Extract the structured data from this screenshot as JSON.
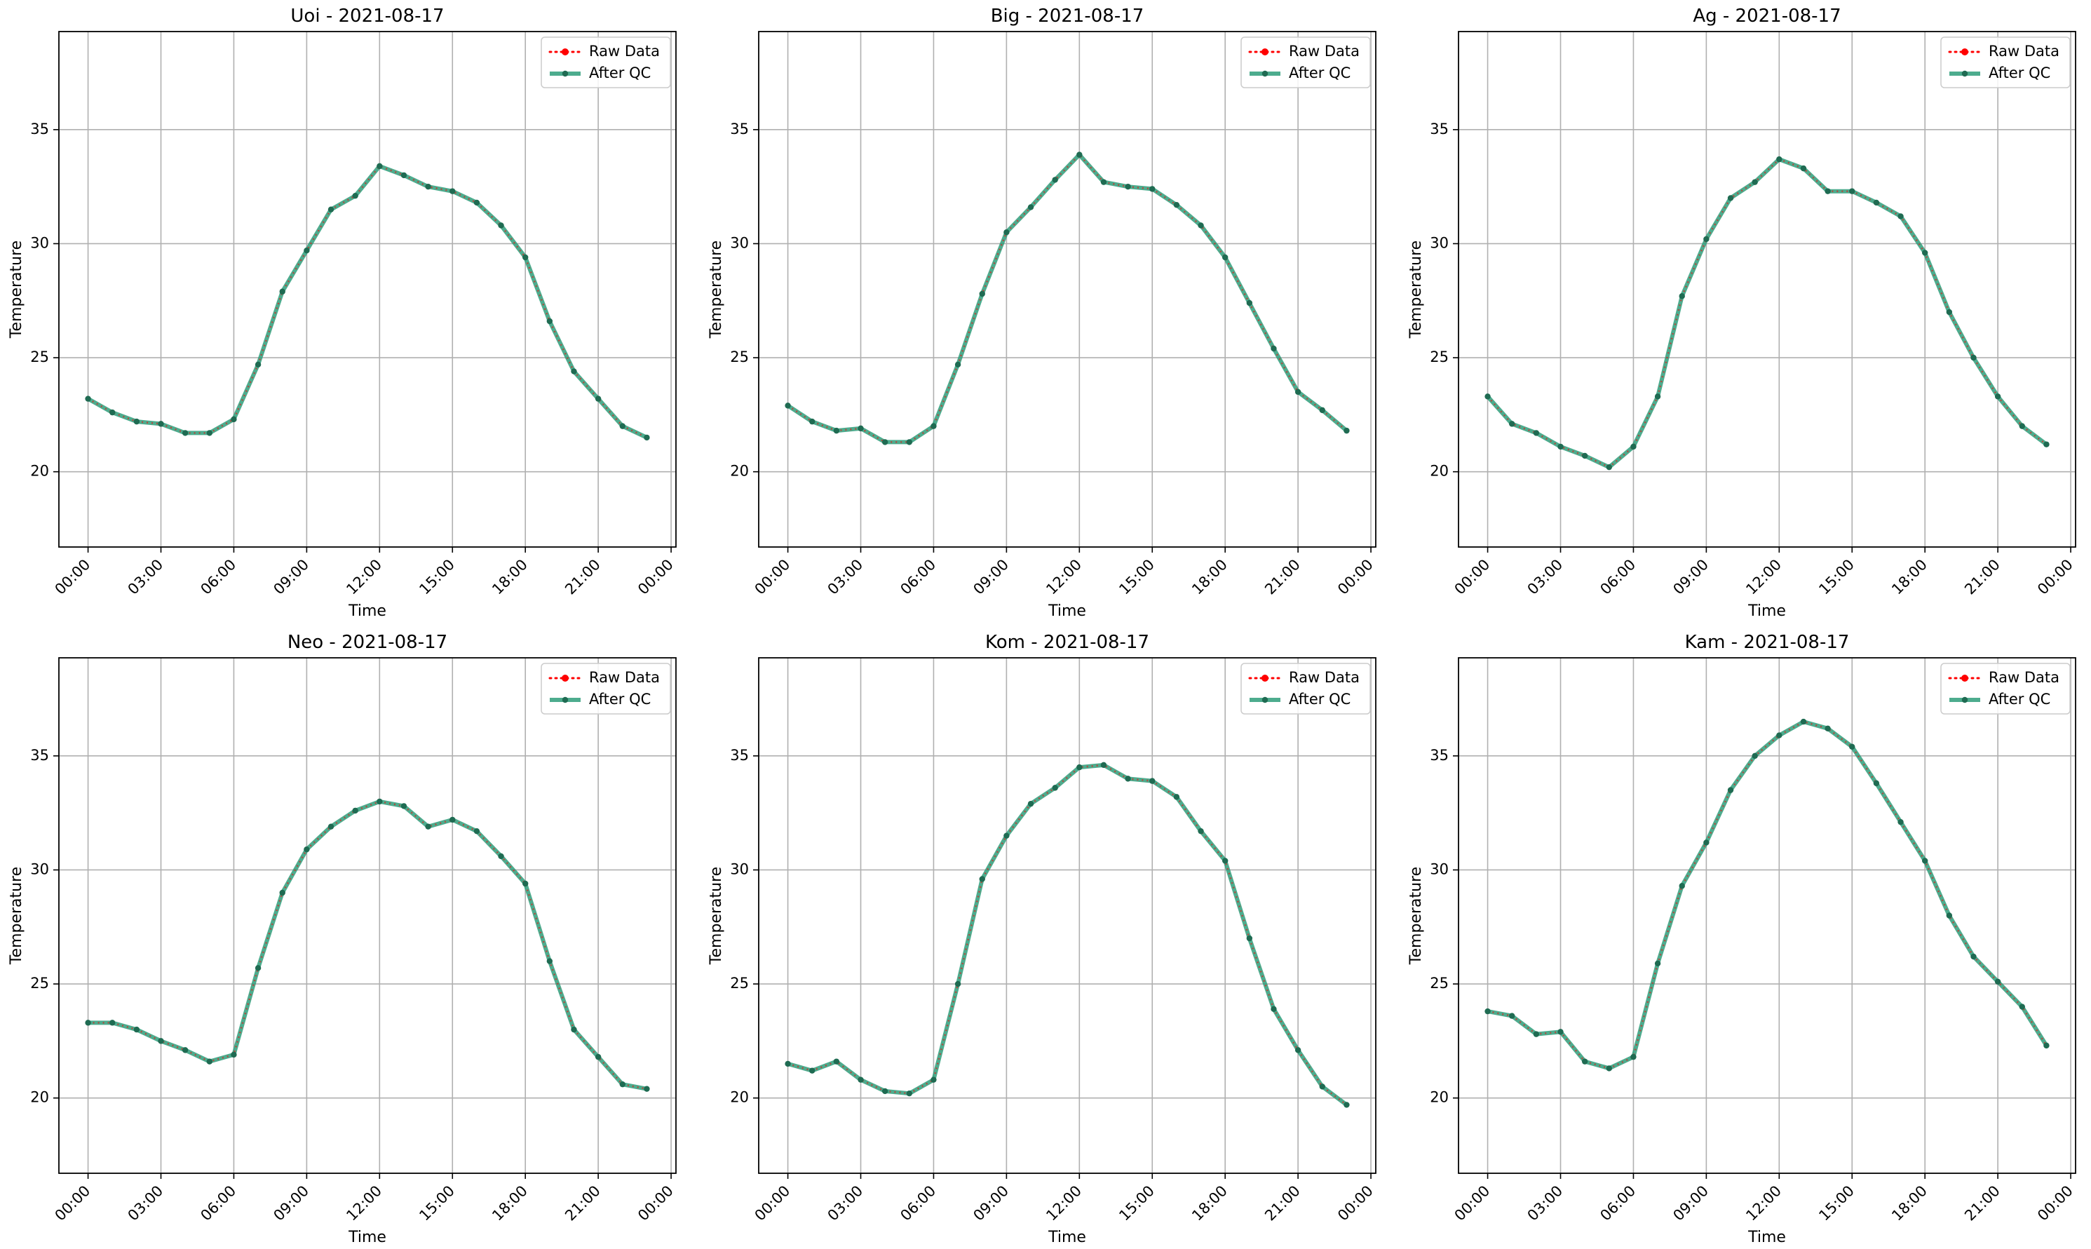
{
  "figure": {
    "legend_labels": {
      "raw": "Raw Data",
      "qc": "After QC"
    },
    "colors": {
      "raw": "#ff0000",
      "qc": "#2e9e7a",
      "marker": "#1f6b52",
      "grid": "#b0b0b0",
      "axes": "#000000"
    }
  },
  "chart_data": [
    {
      "type": "line",
      "title": "Uoi - 2021-08-17",
      "xlabel": "Time",
      "ylabel": "Temperature",
      "x_ticks": [
        "00:00",
        "03:00",
        "06:00",
        "09:00",
        "12:00",
        "15:00",
        "18:00",
        "21:00",
        "00:00"
      ],
      "y_ticks": [
        20,
        25,
        30,
        35
      ],
      "xlim_hours": [
        -1.2,
        24.2
      ],
      "ylim": [
        16.7,
        39.3
      ],
      "grid": true,
      "legend_position": "top-right",
      "series": [
        {
          "name": "Raw Data",
          "style": "dotted",
          "values": [
            23.2,
            22.6,
            22.2,
            22.1,
            21.7,
            21.7,
            22.3,
            24.7,
            27.9,
            29.7,
            31.5,
            32.1,
            33.4,
            33.0,
            32.5,
            32.3,
            31.8,
            30.8,
            29.4,
            26.6,
            24.4,
            23.2,
            22.0,
            21.5
          ]
        },
        {
          "name": "After QC",
          "style": "solid",
          "values": [
            23.2,
            22.6,
            22.2,
            22.1,
            21.7,
            21.7,
            22.3,
            24.7,
            27.9,
            29.7,
            31.5,
            32.1,
            33.4,
            33.0,
            32.5,
            32.3,
            31.8,
            30.8,
            29.4,
            26.6,
            24.4,
            23.2,
            22.0,
            21.5
          ]
        }
      ]
    },
    {
      "type": "line",
      "title": "Big - 2021-08-17",
      "xlabel": "Time",
      "ylabel": "Temperature",
      "x_ticks": [
        "00:00",
        "03:00",
        "06:00",
        "09:00",
        "12:00",
        "15:00",
        "18:00",
        "21:00",
        "00:00"
      ],
      "y_ticks": [
        20,
        25,
        30,
        35
      ],
      "xlim_hours": [
        -1.2,
        24.2
      ],
      "ylim": [
        16.7,
        39.3
      ],
      "grid": true,
      "legend_position": "top-right",
      "series": [
        {
          "name": "Raw Data",
          "style": "dotted",
          "values": [
            22.9,
            22.2,
            21.8,
            21.9,
            21.3,
            21.3,
            22.0,
            24.7,
            27.8,
            30.5,
            31.6,
            32.8,
            33.9,
            32.7,
            32.5,
            32.4,
            31.7,
            30.8,
            29.4,
            27.4,
            25.4,
            23.5,
            22.7,
            21.8
          ]
        },
        {
          "name": "After QC",
          "style": "solid",
          "values": [
            22.9,
            22.2,
            21.8,
            21.9,
            21.3,
            21.3,
            22.0,
            24.7,
            27.8,
            30.5,
            31.6,
            32.8,
            33.9,
            32.7,
            32.5,
            32.4,
            31.7,
            30.8,
            29.4,
            27.4,
            25.4,
            23.5,
            22.7,
            21.8
          ]
        }
      ]
    },
    {
      "type": "line",
      "title": "Ag - 2021-08-17",
      "xlabel": "Time",
      "ylabel": "Temperature",
      "x_ticks": [
        "00:00",
        "03:00",
        "06:00",
        "09:00",
        "12:00",
        "15:00",
        "18:00",
        "21:00",
        "00:00"
      ],
      "y_ticks": [
        20,
        25,
        30,
        35
      ],
      "xlim_hours": [
        -1.2,
        24.2
      ],
      "ylim": [
        16.7,
        39.3
      ],
      "grid": true,
      "legend_position": "top-right",
      "series": [
        {
          "name": "Raw Data",
          "style": "dotted",
          "values": [
            23.3,
            22.1,
            21.7,
            21.1,
            20.7,
            20.2,
            21.1,
            23.3,
            27.7,
            30.2,
            32.0,
            32.7,
            33.7,
            33.3,
            32.3,
            32.3,
            31.8,
            31.2,
            29.6,
            27.0,
            25.0,
            23.3,
            22.0,
            21.2
          ]
        },
        {
          "name": "After QC",
          "style": "solid",
          "values": [
            23.3,
            22.1,
            21.7,
            21.1,
            20.7,
            20.2,
            21.1,
            23.3,
            27.7,
            30.2,
            32.0,
            32.7,
            33.7,
            33.3,
            32.3,
            32.3,
            31.8,
            31.2,
            29.6,
            27.0,
            25.0,
            23.3,
            22.0,
            21.2
          ]
        }
      ]
    },
    {
      "type": "line",
      "title": "Neo - 2021-08-17",
      "xlabel": "Time",
      "ylabel": "Temperature",
      "x_ticks": [
        "00:00",
        "03:00",
        "06:00",
        "09:00",
        "12:00",
        "15:00",
        "18:00",
        "21:00",
        "00:00"
      ],
      "y_ticks": [
        20,
        25,
        30,
        35
      ],
      "xlim_hours": [
        -1.2,
        24.2
      ],
      "ylim": [
        16.7,
        39.3
      ],
      "grid": true,
      "legend_position": "top-right",
      "series": [
        {
          "name": "Raw Data",
          "style": "dotted",
          "values": [
            23.3,
            23.3,
            23.0,
            22.5,
            22.1,
            21.6,
            21.9,
            25.7,
            29.0,
            30.9,
            31.9,
            32.6,
            33.0,
            32.8,
            31.9,
            32.2,
            31.7,
            30.6,
            29.4,
            26.0,
            23.0,
            21.8,
            20.6,
            20.4
          ]
        },
        {
          "name": "After QC",
          "style": "solid",
          "values": [
            23.3,
            23.3,
            23.0,
            22.5,
            22.1,
            21.6,
            21.9,
            25.7,
            29.0,
            30.9,
            31.9,
            32.6,
            33.0,
            32.8,
            31.9,
            32.2,
            31.7,
            30.6,
            29.4,
            26.0,
            23.0,
            21.8,
            20.6,
            20.4
          ]
        }
      ]
    },
    {
      "type": "line",
      "title": "Kom - 2021-08-17",
      "xlabel": "Time",
      "ylabel": "Temperature",
      "x_ticks": [
        "00:00",
        "03:00",
        "06:00",
        "09:00",
        "12:00",
        "15:00",
        "18:00",
        "21:00",
        "00:00"
      ],
      "y_ticks": [
        20,
        25,
        30,
        35
      ],
      "xlim_hours": [
        -1.2,
        24.2
      ],
      "ylim": [
        16.7,
        39.3
      ],
      "grid": true,
      "legend_position": "top-right",
      "series": [
        {
          "name": "Raw Data",
          "style": "dotted",
          "values": [
            21.5,
            21.2,
            21.6,
            20.8,
            20.3,
            20.2,
            20.8,
            25.0,
            29.6,
            31.5,
            32.9,
            33.6,
            34.5,
            34.6,
            34.0,
            33.9,
            33.2,
            31.7,
            30.4,
            27.0,
            23.9,
            22.1,
            20.5,
            19.7
          ]
        },
        {
          "name": "After QC",
          "style": "solid",
          "values": [
            21.5,
            21.2,
            21.6,
            20.8,
            20.3,
            20.2,
            20.8,
            25.0,
            29.6,
            31.5,
            32.9,
            33.6,
            34.5,
            34.6,
            34.0,
            33.9,
            33.2,
            31.7,
            30.4,
            27.0,
            23.9,
            22.1,
            20.5,
            19.7
          ]
        }
      ]
    },
    {
      "type": "line",
      "title": "Kam - 2021-08-17",
      "xlabel": "Time",
      "ylabel": "Temperature",
      "x_ticks": [
        "00:00",
        "03:00",
        "06:00",
        "09:00",
        "12:00",
        "15:00",
        "18:00",
        "21:00",
        "00:00"
      ],
      "y_ticks": [
        20,
        25,
        30,
        35
      ],
      "xlim_hours": [
        -1.2,
        24.2
      ],
      "ylim": [
        16.7,
        39.3
      ],
      "grid": true,
      "legend_position": "top-right",
      "series": [
        {
          "name": "Raw Data",
          "style": "dotted",
          "values": [
            23.8,
            23.6,
            22.8,
            22.9,
            21.6,
            21.3,
            21.8,
            25.9,
            29.3,
            31.2,
            33.5,
            35.0,
            35.9,
            36.5,
            36.2,
            35.4,
            33.8,
            32.1,
            30.4,
            28.0,
            26.2,
            25.1,
            24.0,
            22.3
          ]
        },
        {
          "name": "After QC",
          "style": "solid",
          "values": [
            23.8,
            23.6,
            22.8,
            22.9,
            21.6,
            21.3,
            21.8,
            25.9,
            29.3,
            31.2,
            33.5,
            35.0,
            35.9,
            36.5,
            36.2,
            35.4,
            33.8,
            32.1,
            30.4,
            28.0,
            26.2,
            25.1,
            24.0,
            22.3
          ]
        }
      ]
    }
  ]
}
